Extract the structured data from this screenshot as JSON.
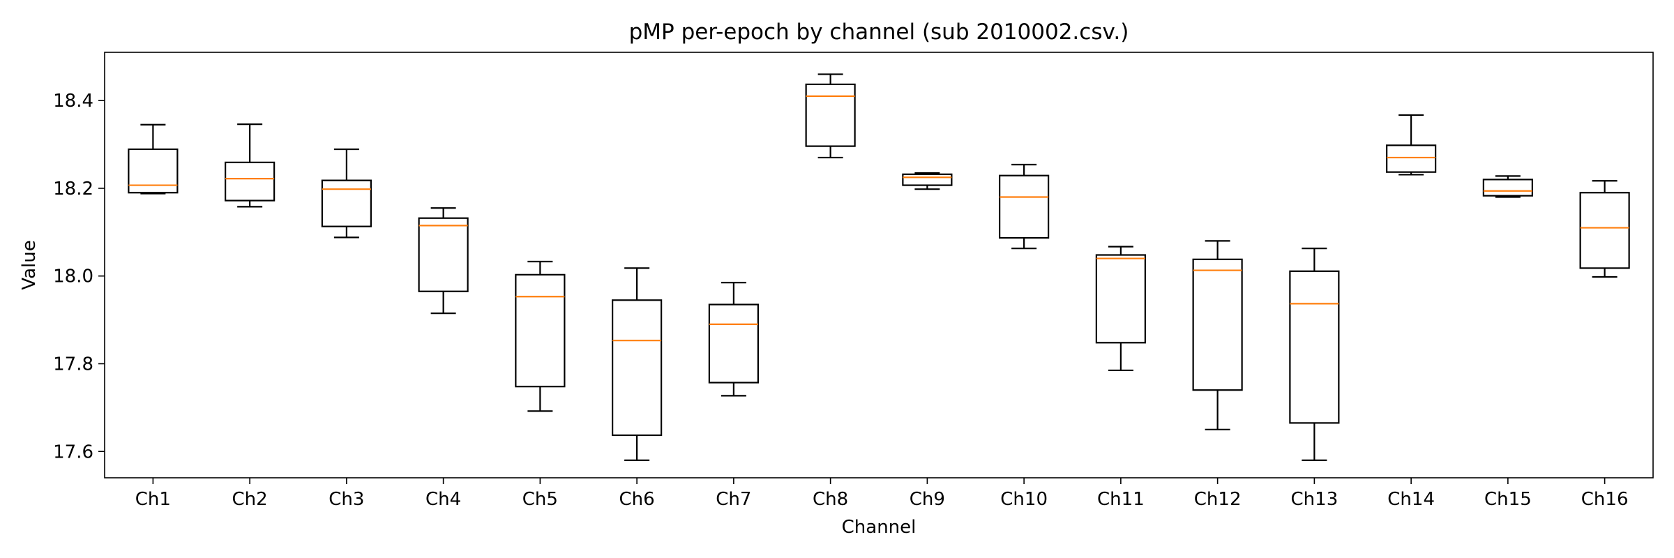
{
  "chart_data": {
    "type": "boxplot",
    "title": "pMP per-epoch by channel (sub 2010002.csv.)",
    "xlabel": "Channel",
    "ylabel": "Value",
    "ylim": [
      17.54,
      18.51
    ],
    "yticks": [
      17.6,
      17.8,
      18.0,
      18.2,
      18.4
    ],
    "ytick_labels": [
      "17.6",
      "17.8",
      "18.0",
      "18.2",
      "18.4"
    ],
    "grid": false,
    "colors": {
      "box": "#000000",
      "median": "#ff7f0e"
    },
    "categories": [
      "Ch1",
      "Ch2",
      "Ch3",
      "Ch4",
      "Ch5",
      "Ch6",
      "Ch7",
      "Ch8",
      "Ch9",
      "Ch10",
      "Ch11",
      "Ch12",
      "Ch13",
      "Ch14",
      "Ch15",
      "Ch16"
    ],
    "boxes": [
      {
        "label": "Ch1",
        "whislo": 18.188,
        "q1": 18.19,
        "med": 18.207,
        "q3": 18.289,
        "whishi": 18.345
      },
      {
        "label": "Ch2",
        "whislo": 18.158,
        "q1": 18.172,
        "med": 18.222,
        "q3": 18.259,
        "whishi": 18.346
      },
      {
        "label": "Ch3",
        "whislo": 18.088,
        "q1": 18.113,
        "med": 18.198,
        "q3": 18.218,
        "whishi": 18.289
      },
      {
        "label": "Ch4",
        "whislo": 17.915,
        "q1": 17.965,
        "med": 18.115,
        "q3": 18.132,
        "whishi": 18.155
      },
      {
        "label": "Ch5",
        "whislo": 17.692,
        "q1": 17.748,
        "med": 17.953,
        "q3": 18.003,
        "whishi": 18.033
      },
      {
        "label": "Ch6",
        "whislo": 17.58,
        "q1": 17.637,
        "med": 17.853,
        "q3": 17.945,
        "whishi": 18.018
      },
      {
        "label": "Ch7",
        "whislo": 17.727,
        "q1": 17.757,
        "med": 17.89,
        "q3": 17.935,
        "whishi": 17.985
      },
      {
        "label": "Ch8",
        "whislo": 18.27,
        "q1": 18.296,
        "med": 18.41,
        "q3": 18.437,
        "whishi": 18.46
      },
      {
        "label": "Ch9",
        "whislo": 18.198,
        "q1": 18.207,
        "med": 18.225,
        "q3": 18.232,
        "whishi": 18.235
      },
      {
        "label": "Ch10",
        "whislo": 18.063,
        "q1": 18.087,
        "med": 18.18,
        "q3": 18.229,
        "whishi": 18.254
      },
      {
        "label": "Ch11",
        "whislo": 17.785,
        "q1": 17.848,
        "med": 18.04,
        "q3": 18.048,
        "whishi": 18.067
      },
      {
        "label": "Ch12",
        "whislo": 17.65,
        "q1": 17.74,
        "med": 18.013,
        "q3": 18.038,
        "whishi": 18.08
      },
      {
        "label": "Ch13",
        "whislo": 17.58,
        "q1": 17.665,
        "med": 17.937,
        "q3": 18.011,
        "whishi": 18.063
      },
      {
        "label": "Ch14",
        "whislo": 18.231,
        "q1": 18.237,
        "med": 18.27,
        "q3": 18.298,
        "whishi": 18.367
      },
      {
        "label": "Ch15",
        "whislo": 18.18,
        "q1": 18.183,
        "med": 18.194,
        "q3": 18.22,
        "whishi": 18.228
      },
      {
        "label": "Ch16",
        "whislo": 17.998,
        "q1": 18.018,
        "med": 18.11,
        "q3": 18.19,
        "whishi": 18.217
      }
    ]
  }
}
